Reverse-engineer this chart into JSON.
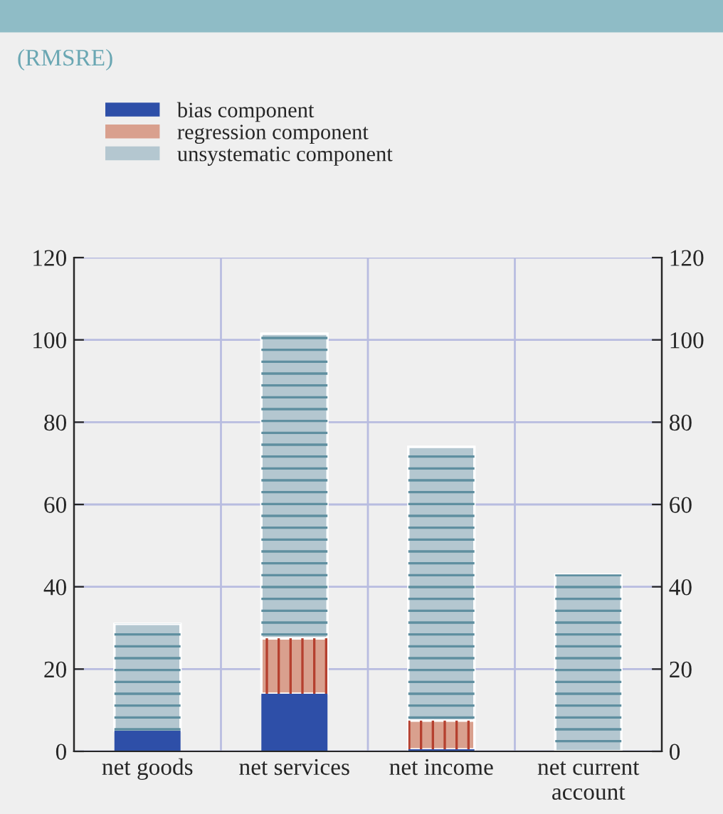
{
  "chart_data": {
    "type": "bar",
    "subtitle": "(RMSRE)",
    "categories": [
      "net goods",
      "net services",
      "net income",
      "net current\naccount"
    ],
    "stacked": true,
    "series": [
      {
        "name": "bias component",
        "color": "#2e4fa8",
        "values": [
          5,
          14,
          0.5,
          0
        ]
      },
      {
        "name": "regression component",
        "color": "#d9a08e",
        "values": [
          0,
          13.5,
          7,
          0
        ]
      },
      {
        "name": "unsystematic component",
        "color": "#b4c7d0",
        "values": [
          26,
          74,
          66.5,
          43
        ]
      }
    ],
    "ylim": [
      0,
      120
    ],
    "yticks": [
      0,
      20,
      40,
      60,
      80,
      100,
      120
    ],
    "y2lim": [
      0,
      120
    ],
    "y2ticks": [
      0,
      20,
      40,
      60,
      80,
      100,
      120
    ],
    "grid": true,
    "legend": "top left"
  }
}
